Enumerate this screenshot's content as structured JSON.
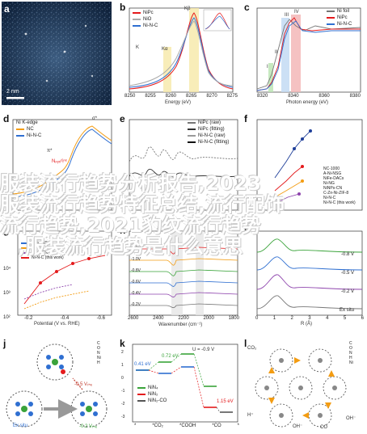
{
  "panels": {
    "a": {
      "label": "a",
      "scale_text": "2 nm"
    },
    "b": {
      "label": "b",
      "series": [
        "NiPc",
        "NiO",
        "Ni-N-C"
      ],
      "x_ticks": [
        "8250",
        "8255",
        "8260",
        "8265",
        "8270",
        "8275"
      ],
      "xlabel": "Energy (eV)",
      "ylabel": "Intensity (a.u.)",
      "ann_kb": "Kβ",
      "ann_ka": "Kα",
      "ann_k": "K"
    },
    "c": {
      "label": "c",
      "series": [
        "Ni foil",
        "NiPc",
        "Ni-N-C"
      ],
      "x_ticks": [
        "8320",
        "8340",
        "8360",
        "8380"
      ],
      "xlabel": "Photon energy (eV)",
      "ylabel": "Normalized intensity (a.u.)",
      "roman": [
        "I",
        "II",
        "III",
        "IV"
      ]
    },
    "d": {
      "label": "d",
      "series": [
        "Ni K-edge",
        "NC",
        "Ni-N-C"
      ],
      "xlabel": "Energy (eV)",
      "ylabel": "Intensity (a.u.)",
      "ann_sigma": "σ*",
      "ann_pi": "π*",
      "ann_npyri": "Nₚᵧᵣᵢᵈᵢⁿᵉ"
    },
    "e": {
      "label": "e",
      "series": [
        "NiPc (raw)",
        "NiPc (fitting)",
        "Ni-N-C (raw)",
        "Ni-N-C (fitting)"
      ]
    },
    "f": {
      "label": "f",
      "ylabel": "TOF (site⁻¹ h⁻¹)",
      "series": [
        "NC-1000",
        "A-Ni-NSG",
        "NiFe-DACs",
        "Ni-NG",
        "NiNPs-CN",
        "C-Zn-Ni-ZIF-8",
        "Ni-N-C",
        "Ni-N-C (this work)"
      ]
    },
    "g": {
      "label": "g",
      "xlabel": "Potential (V vs. RHE)",
      "ylabel": "TOF (site⁻¹ h⁻¹)",
      "x_ticks": [
        "-0.2",
        "-0.4",
        "-0.6"
      ],
      "y_ticks": [
        "10⁴",
        "10³",
        "10²"
      ],
      "series": [
        "CFP-NiPc",
        "NiPc",
        "CoNi-CN",
        "Ni-N-C (this work)"
      ]
    },
    "h": {
      "label": "h",
      "xlabel": "Wavenumber (cm⁻¹)",
      "ylabel": "Absorbance",
      "x_ticks": [
        "2600",
        "2400",
        "2200",
        "2000",
        "1800"
      ],
      "potentials": [
        "-1.1V",
        "-1.0V",
        "-0.8V",
        "-0.6V",
        "-0.4V",
        "-0.2V"
      ]
    },
    "i": {
      "label": "i",
      "xlabel": "R (Å)",
      "ylabel": "|FT(k³χ)|",
      "x_ticks": [
        "0",
        "1",
        "2",
        "3",
        "4",
        "5",
        "6"
      ],
      "curves": [
        "-0.8 V",
        "-0.5 V",
        "-0.2 V",
        "Ex situ"
      ]
    },
    "j": {
      "label": "j",
      "ex_situ": "Ex situ",
      "v1": "-0.5 Vᵣₕₑ",
      "v2": "-0.2 Vᵣₕₑ",
      "atoms": [
        "C",
        "O",
        "N",
        "Ni",
        "H"
      ]
    },
    "k": {
      "label": "k",
      "u_text": "U = -0.9 V",
      "ylabel": "ΔG (eV)",
      "x_ticks": [
        "*",
        "*CO₂",
        "*COOH",
        "*CO",
        "*"
      ],
      "values": [
        "0.41 eV",
        "0.72 eV",
        "1.15 eV"
      ],
      "series": [
        "NiN₄",
        "NiN₂",
        "NiN₂-CO"
      ],
      "y_ticks": [
        "2",
        "1",
        "0",
        "-1",
        "-2",
        "-3"
      ]
    },
    "l": {
      "label": "l",
      "species": [
        "CO₂",
        "H⁺",
        "OH⁻",
        "CO",
        "OH⁻"
      ],
      "atoms": [
        "C",
        "O",
        "N",
        "H",
        "Ni"
      ]
    }
  },
  "overlay_text": {
    "line1": "服装流行趋势分析报告,2023",
    "line2": "服装流行趋势特征总结,流行配饰",
    "line3": "流行趋势,2021豹纹流行趋势",
    "line4": ",服装流行趋势是什么意思"
  },
  "colors": {
    "red": "#e41a1c",
    "blue": "#2f6fd1",
    "green": "#3aa33a",
    "orange": "#f39c12",
    "purple": "#8e44ad",
    "gray": "#777777"
  }
}
